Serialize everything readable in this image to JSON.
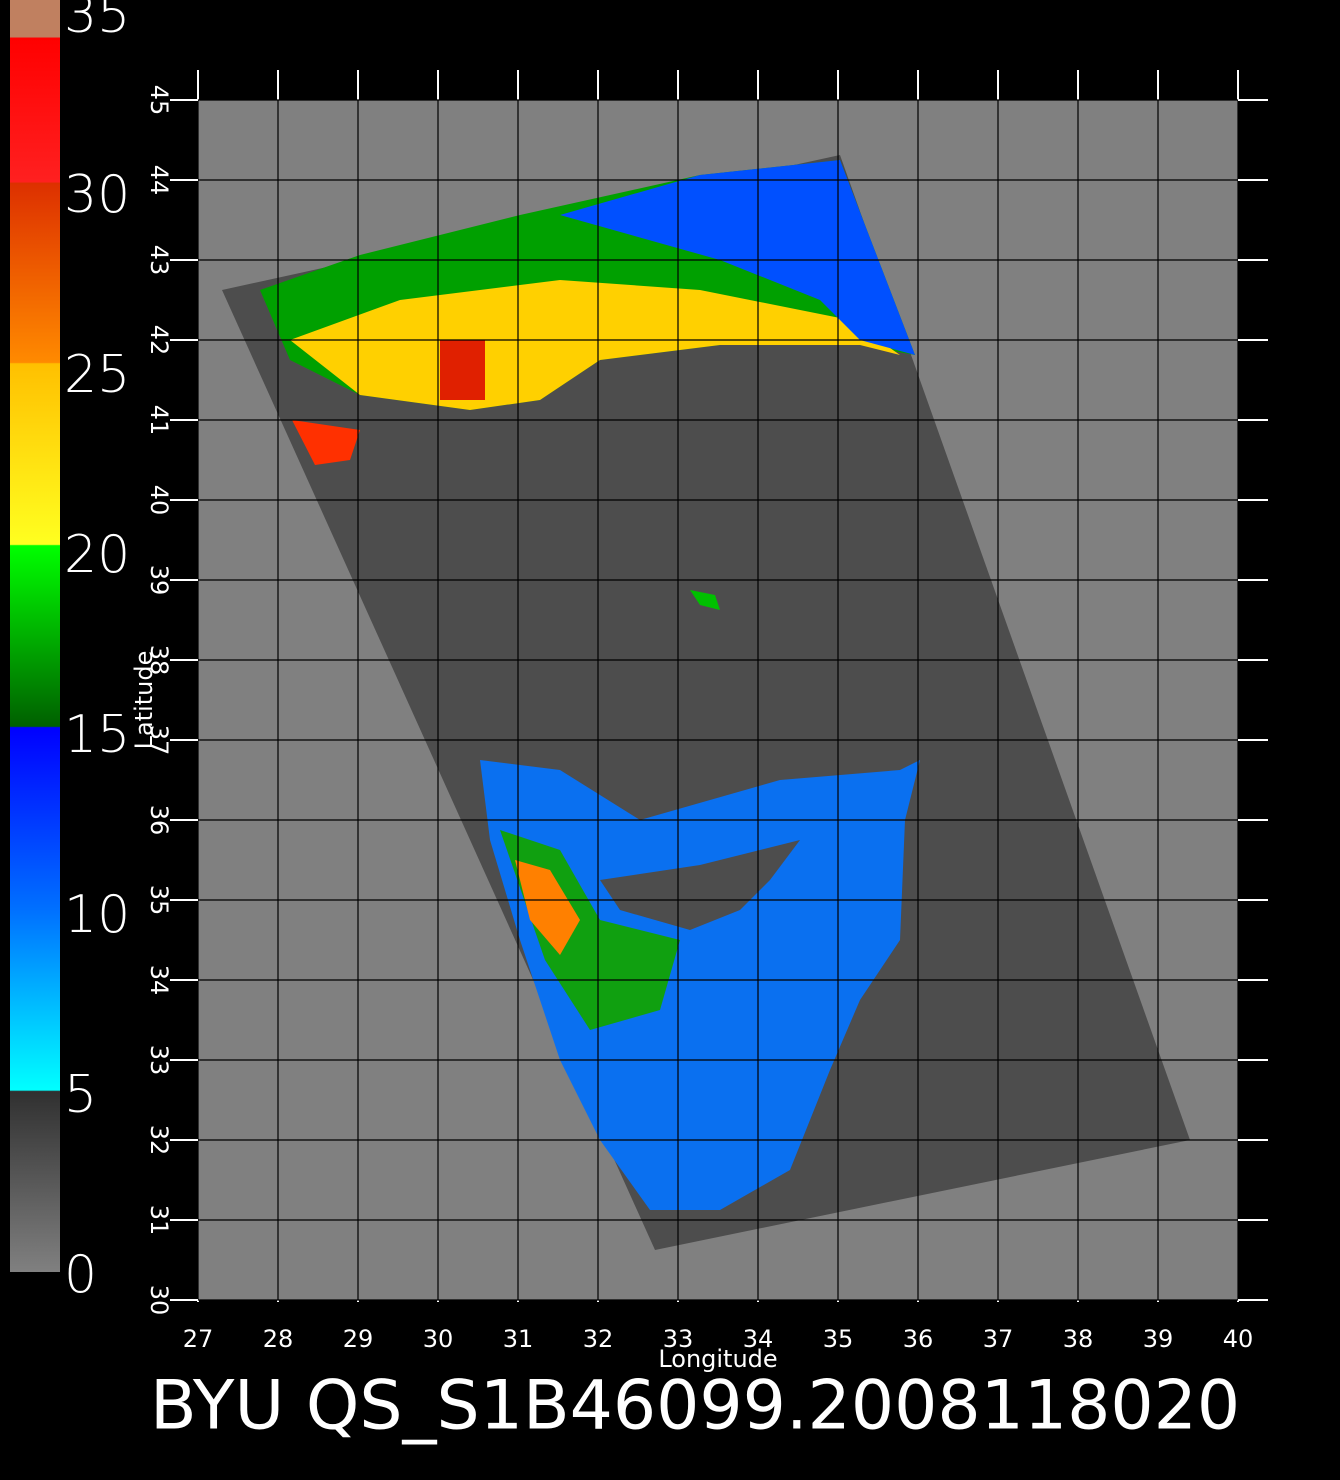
{
  "chart_data": {
    "type": "map",
    "title": "BYU QS_S1B46099.2008118020",
    "xlabel": "Longitude",
    "ylabel": "Latitude",
    "xlim": [
      27,
      40
    ],
    "ylim": [
      30,
      45
    ],
    "xticks": [
      27,
      28,
      29,
      30,
      31,
      32,
      33,
      34,
      35,
      36,
      37,
      38,
      39,
      40
    ],
    "yticks": [
      30,
      31,
      32,
      33,
      34,
      35,
      36,
      37,
      38,
      39,
      40,
      41,
      42,
      43,
      44,
      45
    ],
    "colorbar": {
      "lim": [
        0,
        35
      ],
      "ticks": [
        0,
        5,
        10,
        15,
        20,
        25,
        30,
        35
      ]
    }
  }
}
